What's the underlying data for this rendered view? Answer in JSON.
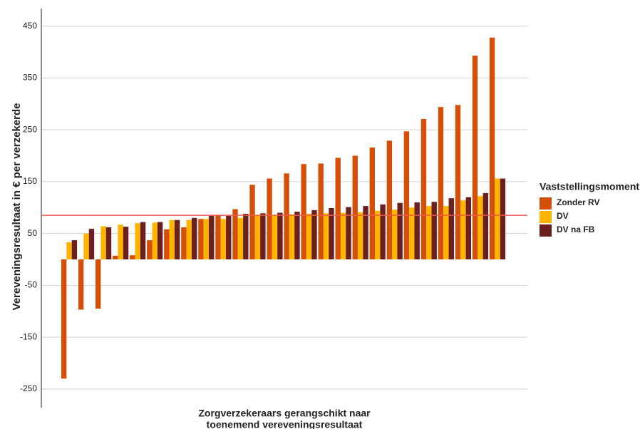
{
  "chart_data": {
    "type": "bar",
    "ylabel": "Vereveningsresultaat in  €  per verzekerde",
    "xlabel": [
      "Zorgverzekeraars gerangschikt naar",
      "toenemend vereveningsresultaat"
    ],
    "legend_title": "Vaststellingsmoment",
    "categories": [
      null,
      null,
      null,
      null,
      null,
      null,
      null,
      null,
      null,
      null,
      null,
      null,
      null,
      null,
      null,
      null,
      null,
      null,
      null,
      null,
      null,
      null,
      null,
      null,
      null,
      null
    ],
    "series": [
      {
        "name": "Zonder RV",
        "color": "#d4500a",
        "values": [
          -230,
          -97,
          -95,
          7,
          8,
          37,
          58,
          62,
          78,
          85,
          97,
          144,
          156,
          166,
          184,
          185,
          196,
          200,
          216,
          229,
          247,
          271,
          294,
          298,
          393,
          428
        ]
      },
      {
        "name": "DV",
        "color": "#ffb400",
        "values": [
          33,
          50,
          64,
          67,
          70,
          71,
          76,
          76,
          78,
          78,
          80,
          85,
          86,
          87,
          88,
          89,
          90,
          91,
          94,
          96,
          100,
          103,
          103,
          114,
          122,
          156
        ]
      },
      {
        "name": "DV na FB",
        "color": "#6b1f1f",
        "values": [
          37,
          59,
          62,
          63,
          72,
          72,
          76,
          80,
          84,
          84,
          88,
          89,
          90,
          92,
          95,
          99,
          101,
          103,
          106,
          109,
          110,
          111,
          118,
          120,
          128,
          156
        ]
      }
    ],
    "reference_line": 85,
    "reference_color": "#f05a4a",
    "ylim": [
      -286,
      484
    ],
    "yticks": [
      -250,
      -150,
      -50,
      50,
      150,
      250,
      350,
      450
    ],
    "grid": true,
    "legend": "right"
  }
}
